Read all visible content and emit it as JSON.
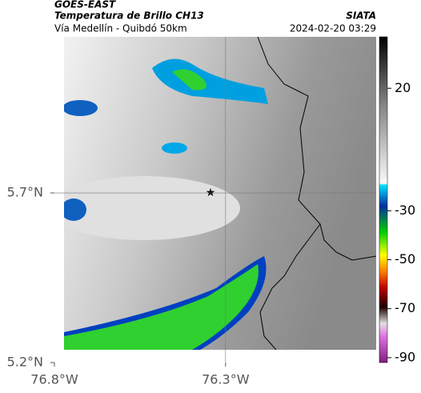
{
  "header": {
    "satellite": "GOES-EAST",
    "product": "Temperatura de Brillo CH13",
    "source": "SIATA",
    "route": "Vía Medellín - Quibdó 50km",
    "datetime": "2024-02-20 03:29"
  },
  "map": {
    "lonlim": [
      -76.8,
      -75.86
    ],
    "latlim": [
      5.2,
      6.16
    ],
    "lonticks": [
      {
        "value": -76.8,
        "label": "76.8°W"
      },
      {
        "value": -76.3,
        "label": "76.3°W"
      }
    ],
    "latticks": [
      {
        "value": 5.7,
        "label": "5.7°N"
      },
      {
        "value": 5.2,
        "label": "5.2°N"
      }
    ],
    "grid": true
  },
  "colorbar": {
    "lim": [
      -92,
      41
    ],
    "ticks": [
      20,
      -30,
      -50,
      -70,
      -90
    ]
  }
}
